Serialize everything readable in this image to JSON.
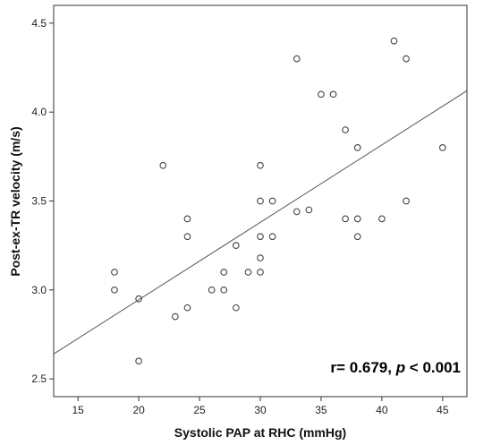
{
  "chart_data": {
    "type": "scatter",
    "xlabel": "Systolic PAP at RHC (mmHg)",
    "ylabel": "Post-ex-TR velocity (m/s)",
    "xlim": [
      13,
      47
    ],
    "ylim": [
      2.4,
      4.6
    ],
    "x_ticks": [
      15,
      20,
      25,
      30,
      35,
      40,
      45
    ],
    "y_ticks": [
      2.5,
      3.0,
      3.5,
      4.0,
      4.5
    ],
    "x_tick_labels": [
      "15",
      "20",
      "25",
      "30",
      "35",
      "40",
      "45"
    ],
    "y_tick_labels": [
      "2.5",
      "3.0",
      "3.5",
      "4.0",
      "4.5"
    ],
    "grid": false,
    "points": [
      {
        "x": 18,
        "y": 3.1
      },
      {
        "x": 18,
        "y": 3.0
      },
      {
        "x": 20,
        "y": 2.95
      },
      {
        "x": 20,
        "y": 2.6
      },
      {
        "x": 22,
        "y": 3.7
      },
      {
        "x": 23,
        "y": 2.85
      },
      {
        "x": 24,
        "y": 3.4
      },
      {
        "x": 24,
        "y": 3.3
      },
      {
        "x": 24,
        "y": 2.9
      },
      {
        "x": 26,
        "y": 3.0
      },
      {
        "x": 27,
        "y": 3.1
      },
      {
        "x": 27,
        "y": 3.0
      },
      {
        "x": 28,
        "y": 3.25
      },
      {
        "x": 28,
        "y": 2.9
      },
      {
        "x": 29,
        "y": 3.1
      },
      {
        "x": 30,
        "y": 3.7
      },
      {
        "x": 30,
        "y": 3.5
      },
      {
        "x": 30,
        "y": 3.3
      },
      {
        "x": 30,
        "y": 3.18
      },
      {
        "x": 30,
        "y": 3.1
      },
      {
        "x": 31,
        "y": 3.5
      },
      {
        "x": 31,
        "y": 3.3
      },
      {
        "x": 33,
        "y": 4.3
      },
      {
        "x": 33,
        "y": 3.44
      },
      {
        "x": 34,
        "y": 3.45
      },
      {
        "x": 35,
        "y": 4.1
      },
      {
        "x": 36,
        "y": 4.1
      },
      {
        "x": 37,
        "y": 3.9
      },
      {
        "x": 37,
        "y": 3.4
      },
      {
        "x": 38,
        "y": 3.8
      },
      {
        "x": 38,
        "y": 3.4
      },
      {
        "x": 38,
        "y": 3.3
      },
      {
        "x": 40,
        "y": 3.4
      },
      {
        "x": 41,
        "y": 4.4
      },
      {
        "x": 42,
        "y": 4.3
      },
      {
        "x": 42,
        "y": 3.5
      },
      {
        "x": 45,
        "y": 3.8
      }
    ],
    "fit_line": {
      "x": [
        13,
        47
      ],
      "y": [
        2.64,
        4.12
      ]
    },
    "annotation": {
      "prefix": "r= 0.679, ",
      "italic": "p",
      "suffix": " < 0.001"
    }
  }
}
